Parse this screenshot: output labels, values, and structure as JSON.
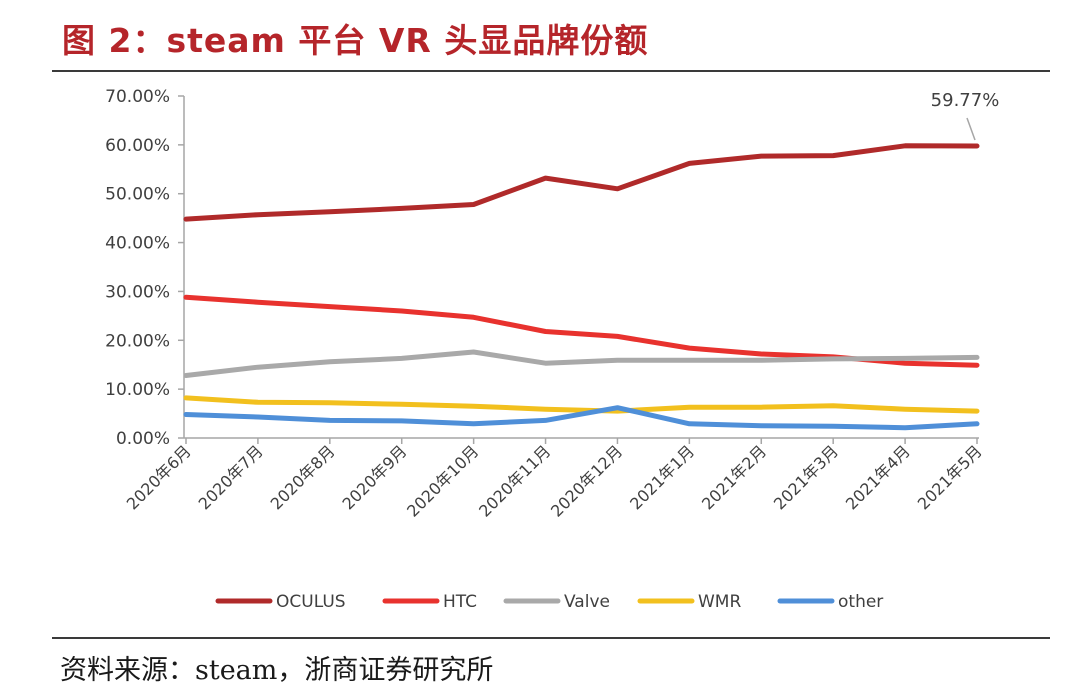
{
  "header": {
    "title": "图 2：steam 平台 VR 头显品牌份额"
  },
  "footer": {
    "source": "资料来源：steam，浙商证券研究所"
  },
  "chart_data": {
    "type": "line",
    "title": "图 2：steam 平台 VR 头显品牌份额",
    "xlabel": "",
    "ylabel": "",
    "ylim": [
      0,
      70
    ],
    "yticks": [
      0,
      10,
      20,
      30,
      40,
      50,
      60,
      70
    ],
    "ytick_labels": [
      "0.00%",
      "10.00%",
      "20.00%",
      "30.00%",
      "40.00%",
      "50.00%",
      "60.00%",
      "70.00%"
    ],
    "categories": [
      "2020年6月",
      "2020年7月",
      "2020年8月",
      "2020年9月",
      "2020年10月",
      "2020年11月",
      "2020年12月",
      "2021年1月",
      "2021年2月",
      "2021年3月",
      "2021年4月",
      "2021年5月"
    ],
    "series": [
      {
        "name": "OCULUS",
        "color": "#b02a2a",
        "values": [
          44.8,
          45.7,
          46.3,
          47.0,
          47.8,
          53.2,
          51.0,
          56.2,
          57.7,
          57.8,
          59.8,
          59.77
        ]
      },
      {
        "name": "HTC",
        "color": "#e8322e",
        "values": [
          28.8,
          27.8,
          26.9,
          26.0,
          24.7,
          21.8,
          20.8,
          18.4,
          17.2,
          16.6,
          15.3,
          14.9
        ]
      },
      {
        "name": "Valve",
        "color": "#a9a9a9",
        "values": [
          12.8,
          14.5,
          15.6,
          16.3,
          17.6,
          15.3,
          15.9,
          15.9,
          15.9,
          16.2,
          16.3,
          16.5
        ]
      },
      {
        "name": "WMR",
        "color": "#f2c01e",
        "values": [
          8.2,
          7.3,
          7.2,
          6.9,
          6.5,
          5.9,
          5.5,
          6.3,
          6.3,
          6.6,
          5.9,
          5.5
        ]
      },
      {
        "name": "other",
        "color": "#4f8fd8",
        "values": [
          4.8,
          4.3,
          3.6,
          3.5,
          2.9,
          3.6,
          6.2,
          2.9,
          2.5,
          2.4,
          2.1,
          2.9
        ]
      }
    ],
    "annotations": [
      {
        "series": "OCULUS",
        "category": "2021年5月",
        "text": "59.77%"
      }
    ],
    "grid": false,
    "legend": "bottom"
  }
}
